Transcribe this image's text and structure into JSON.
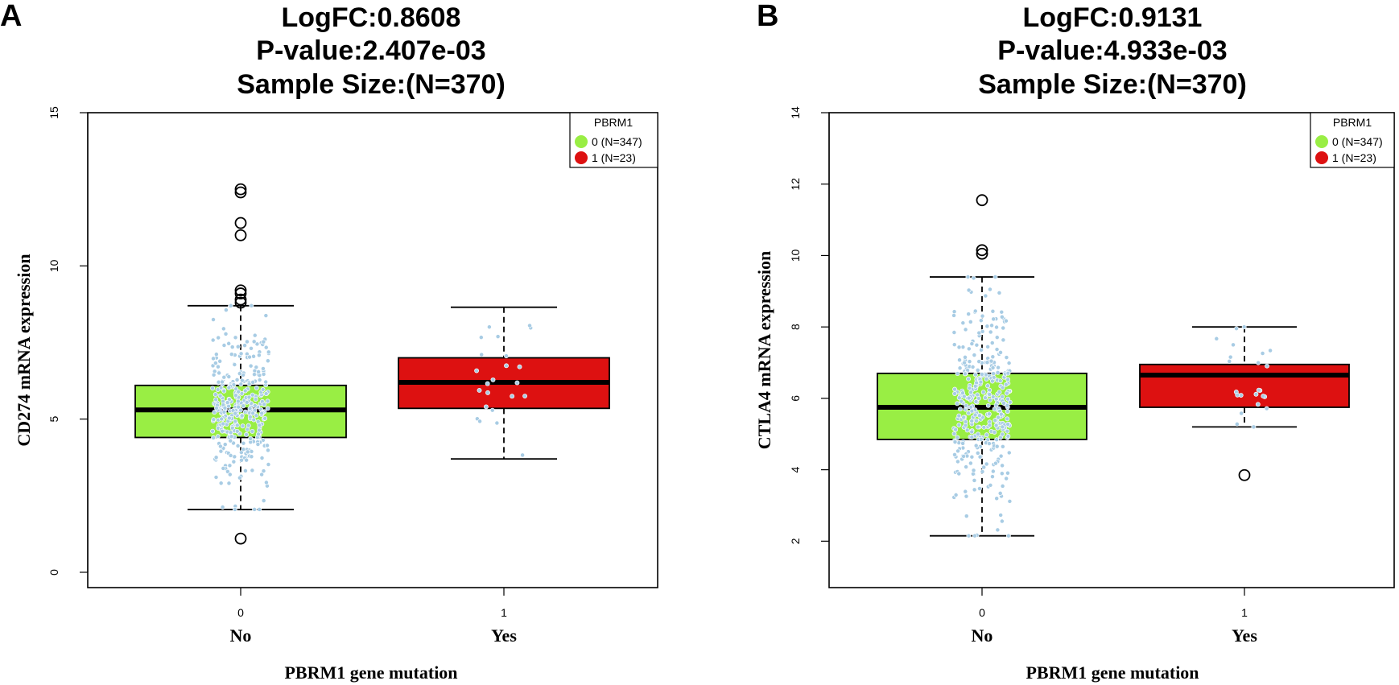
{
  "chart_data": [
    {
      "type": "box",
      "panel_label": "A",
      "title_lines": [
        "LogFC:0.8608",
        "P-value:2.407e-03",
        "Sample Size:(N=370)"
      ],
      "ylabel": "CD274 mRNA expression",
      "xlabel": "PBRM1 gene mutation",
      "ylim": [
        -0.5,
        15
      ],
      "yticks": [
        0,
        5,
        10,
        15
      ],
      "yticks_label": [
        "0",
        "5",
        "10",
        "15"
      ],
      "groups": [
        {
          "tick": "0",
          "label": "No",
          "color": "#99EE44",
          "stats": {
            "min": 2.05,
            "q1": 4.4,
            "median": 5.3,
            "q3": 6.1,
            "max": 8.7
          },
          "outliers": [
            12.5,
            12.4,
            11.4,
            11.0,
            9.2,
            9.1,
            8.9,
            8.8,
            1.1
          ]
        },
        {
          "tick": "1",
          "label": "Yes",
          "color": "#DD1111",
          "stats": {
            "min": 3.7,
            "q1": 5.35,
            "median": 6.2,
            "q3": 7.0,
            "max": 8.65
          },
          "outliers": []
        }
      ],
      "legend": {
        "title": "PBRM1",
        "entries": [
          {
            "label": "0 (N=347)",
            "color": "#99EE44"
          },
          {
            "label": "1 (N=23)",
            "color": "#DD1111"
          }
        ]
      },
      "point_color": "#A8CCE4"
    },
    {
      "type": "box",
      "panel_label": "B",
      "title_lines": [
        "LogFC:0.9131",
        "P-value:4.933e-03",
        "Sample Size:(N=370)"
      ],
      "ylabel": "CTLA4 mRNA expression",
      "xlabel": "PBRM1 gene mutation",
      "ylim": [
        0.7,
        14
      ],
      "yticks": [
        2,
        4,
        6,
        8,
        10,
        12,
        14
      ],
      "yticks_label": [
        "2",
        "4",
        "6",
        "8",
        "10",
        "12",
        "14"
      ],
      "groups": [
        {
          "tick": "0",
          "label": "No",
          "color": "#99EE44",
          "stats": {
            "min": 2.15,
            "q1": 4.85,
            "median": 5.75,
            "q3": 6.7,
            "max": 9.4
          },
          "outliers": [
            11.55,
            10.15,
            10.05
          ]
        },
        {
          "tick": "1",
          "label": "Yes",
          "color": "#DD1111",
          "stats": {
            "min": 5.2,
            "q1": 5.75,
            "median": 6.65,
            "q3": 6.95,
            "max": 8.0
          },
          "outliers": [
            3.85
          ]
        }
      ],
      "legend": {
        "title": "PBRM1",
        "entries": [
          {
            "label": "0 (N=347)",
            "color": "#99EE44"
          },
          {
            "label": "1 (N=23)",
            "color": "#DD1111"
          }
        ]
      },
      "point_color": "#A8CCE4"
    }
  ]
}
